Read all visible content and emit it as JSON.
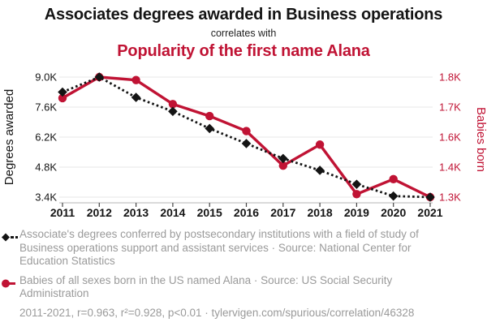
{
  "header": {
    "title": "Associates degrees awarded in Business operations",
    "connector": "correlates with",
    "subtitle": "Popularity of the first name Alana"
  },
  "colors": {
    "red": "#c01334",
    "black": "#141414",
    "legend_gray": "#9a9a9a",
    "grid": "#ececec",
    "axis_line": "#b5b5b5",
    "tick": "#444444"
  },
  "chart_data": {
    "type": "line",
    "x": [
      2011,
      2012,
      2013,
      2014,
      2015,
      2016,
      2017,
      2018,
      2019,
      2020,
      2021
    ],
    "series": [
      {
        "name": "Degrees awarded",
        "axis": "left",
        "style": "dashed",
        "marker": "diamond",
        "color_key": "black",
        "values": [
          8300,
          9000,
          8050,
          7400,
          6600,
          5900,
          5200,
          4650,
          4000,
          3450,
          3400
        ]
      },
      {
        "name": "Babies born",
        "axis": "right",
        "style": "solid",
        "marker": "circle",
        "color_key": "red",
        "values": [
          1730,
          1800,
          1790,
          1710,
          1670,
          1620,
          1410,
          1550,
          1310,
          1360,
          1300
        ]
      }
    ],
    "left_axis": {
      "label": "Degrees awarded",
      "ticks": [
        "9.0K",
        "7.6K",
        "6.2K",
        "4.8K",
        "3.4K"
      ],
      "tick_values": [
        9000,
        7600,
        6200,
        4800,
        3400
      ]
    },
    "right_axis": {
      "label": "Babies born",
      "ticks": [
        "1.8K",
        "1.7K",
        "1.6K",
        "1.4K",
        "1.3K"
      ],
      "tick_values": [
        1800,
        1700,
        1600,
        1400,
        1300
      ]
    },
    "grid": "horizontal",
    "legend_position": "bottom"
  },
  "legend": [
    {
      "marker": "black-diamond-dashed",
      "text": "Associate's degrees conferred by postsecondary institutions with a field of study of Business operations support and assistant services · Source: National Center for Education Statistics"
    },
    {
      "marker": "red-circle-line",
      "text": "Babies of all sexes born in the US named Alana · Source: US Social Security Administration"
    }
  ],
  "footer": {
    "text": "2011-2021, r=0.963, r²=0.928, p<0.01 · tylervigen.com/spurious/correlation/46328"
  }
}
